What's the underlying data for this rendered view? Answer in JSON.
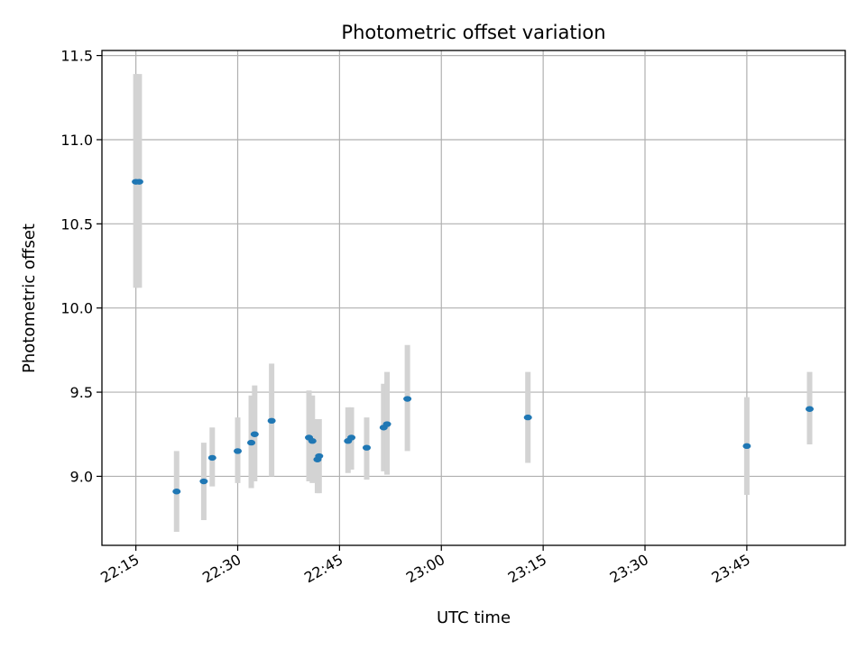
{
  "chart_data": {
    "type": "scatter",
    "title": "Photometric offset variation",
    "xlabel": "UTC time",
    "ylabel": "Photometric offset",
    "x_tick_labels": [
      "22:15",
      "22:30",
      "22:45",
      "23:00",
      "23:15",
      "23:30",
      "23:45"
    ],
    "y_tick_labels": [
      "9.0",
      "9.5",
      "10.0",
      "10.5",
      "11.0",
      "11.5"
    ],
    "ylim": [
      8.59,
      11.53
    ],
    "xlim": [
      "22:10",
      "23:59:30"
    ],
    "grid": true,
    "colors": {
      "marker": "#1f77b4",
      "errorbar": "#d3d3d3",
      "grid": "#b0b0b0"
    },
    "points": [
      {
        "x": "22:15:00",
        "y": 10.75,
        "err_low": 10.12,
        "err_high": 11.39
      },
      {
        "x": "22:15:30",
        "y": 10.75,
        "err_low": 10.12,
        "err_high": 11.39
      },
      {
        "x": "22:21:00",
        "y": 8.91,
        "err_low": 8.67,
        "err_high": 9.15
      },
      {
        "x": "22:25:00",
        "y": 8.97,
        "err_low": 8.74,
        "err_high": 9.2
      },
      {
        "x": "22:26:15",
        "y": 9.11,
        "err_low": 8.94,
        "err_high": 9.29
      },
      {
        "x": "22:30:00",
        "y": 9.15,
        "err_low": 8.96,
        "err_high": 9.35
      },
      {
        "x": "22:32:00",
        "y": 9.2,
        "err_low": 8.93,
        "err_high": 9.48
      },
      {
        "x": "22:32:30",
        "y": 9.25,
        "err_low": 8.97,
        "err_high": 9.54
      },
      {
        "x": "22:35:00",
        "y": 9.33,
        "err_low": 9.0,
        "err_high": 9.67
      },
      {
        "x": "22:40:30",
        "y": 9.23,
        "err_low": 8.97,
        "err_high": 9.51
      },
      {
        "x": "22:41:00",
        "y": 9.21,
        "err_low": 8.96,
        "err_high": 9.48
      },
      {
        "x": "22:41:45",
        "y": 9.1,
        "err_low": 8.9,
        "err_high": 9.34
      },
      {
        "x": "22:42:00",
        "y": 9.12,
        "err_low": 8.9,
        "err_high": 9.34
      },
      {
        "x": "22:46:15",
        "y": 9.21,
        "err_low": 9.02,
        "err_high": 9.41
      },
      {
        "x": "22:46:45",
        "y": 9.23,
        "err_low": 9.04,
        "err_high": 9.41
      },
      {
        "x": "22:49:00",
        "y": 9.17,
        "err_low": 8.98,
        "err_high": 9.35
      },
      {
        "x": "22:51:30",
        "y": 9.29,
        "err_low": 9.03,
        "err_high": 9.55
      },
      {
        "x": "22:52:00",
        "y": 9.31,
        "err_low": 9.01,
        "err_high": 9.62
      },
      {
        "x": "22:55:00",
        "y": 9.46,
        "err_low": 9.15,
        "err_high": 9.78
      },
      {
        "x": "23:12:45",
        "y": 9.35,
        "err_low": 9.08,
        "err_high": 9.62
      },
      {
        "x": "23:45:00",
        "y": 9.18,
        "err_low": 8.89,
        "err_high": 9.47
      },
      {
        "x": "23:54:15",
        "y": 9.4,
        "err_low": 9.19,
        "err_high": 9.62
      }
    ]
  }
}
